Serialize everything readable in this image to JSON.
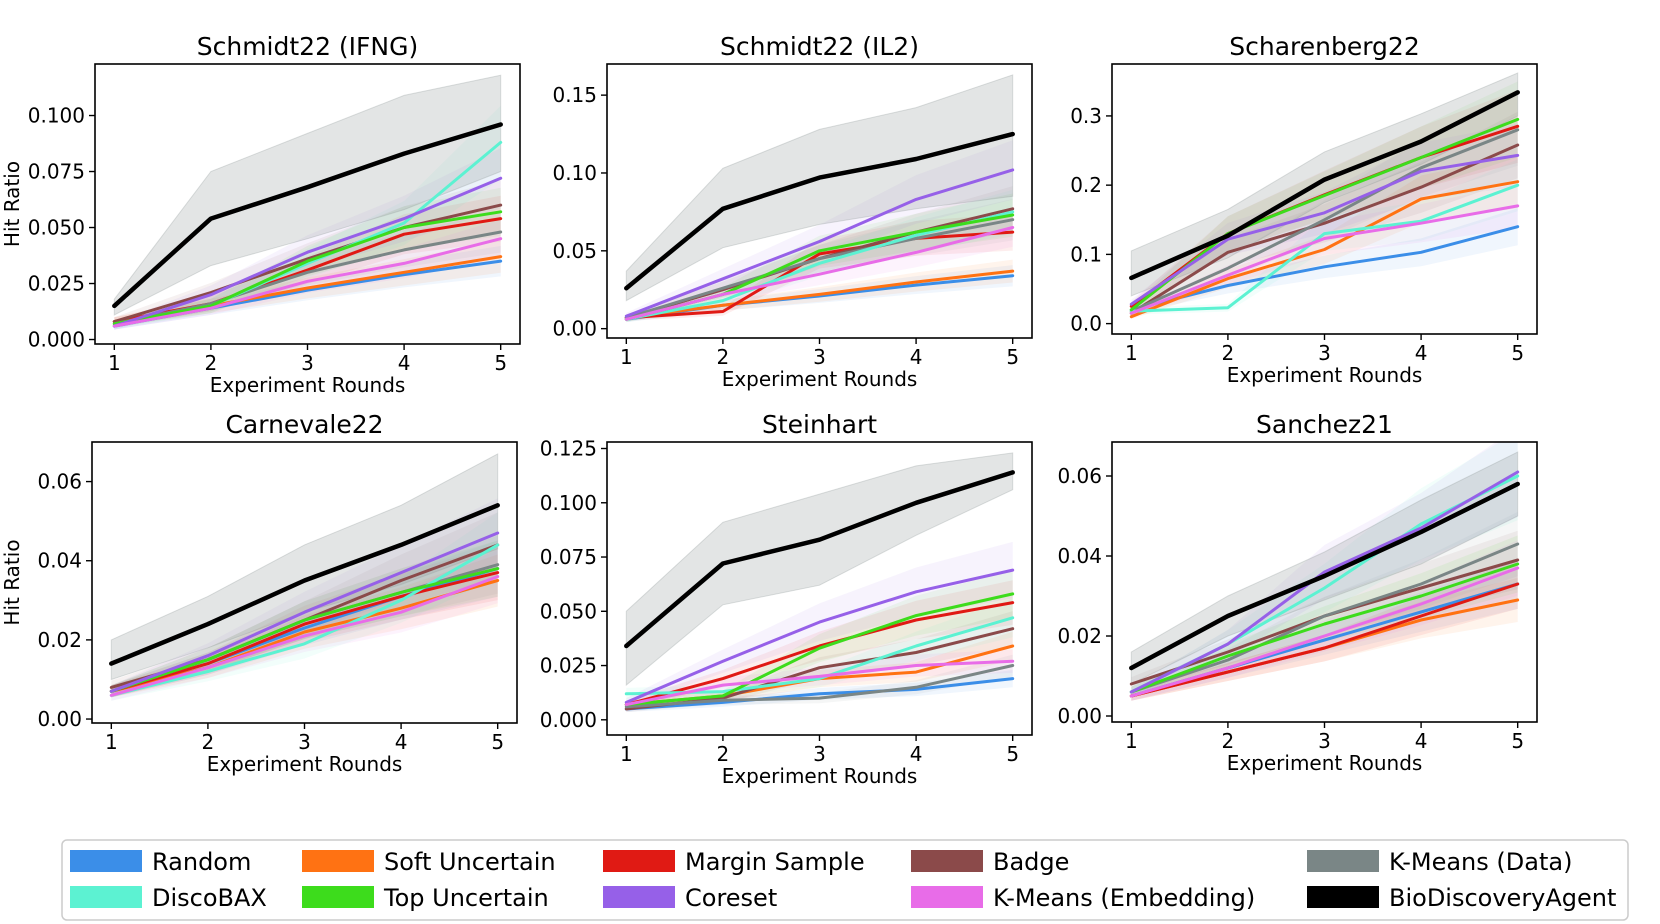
{
  "figure": {
    "legend_placement": "bottom",
    "legend": [
      {
        "key": "random",
        "label": "Random"
      },
      {
        "key": "soft",
        "label": "Soft Uncertain"
      },
      {
        "key": "margin",
        "label": "Margin Sample"
      },
      {
        "key": "badge",
        "label": "Badge"
      },
      {
        "key": "kmeans_data",
        "label": "K-Means (Data)"
      },
      {
        "key": "discobax",
        "label": "DiscoBAX"
      },
      {
        "key": "top",
        "label": "Top Uncertain"
      },
      {
        "key": "coreset",
        "label": "Coreset"
      },
      {
        "key": "kmeans_emb",
        "label": "K-Means (Embedding)"
      },
      {
        "key": "bda",
        "label": "BioDiscoveryAgent"
      }
    ],
    "colors": {
      "random": "#3b8ee8",
      "soft": "#ff7213",
      "margin": "#e01a14",
      "badge": "#8b4a4a",
      "kmeans_data": "#7a8686",
      "discobax": "#5cf2d2",
      "top": "#3ddc1c",
      "coreset": "#9660e8",
      "kmeans_emb": "#e86ce8",
      "bda": "#000000"
    }
  },
  "chart_data": [
    {
      "type": "line",
      "title": "Schmidt22 (IFNG)",
      "xlabel": "Experiment Rounds",
      "ylabel": "Hit Ratio",
      "x": [
        1,
        2,
        3,
        4,
        5
      ],
      "xlim": [
        0.8,
        5.2
      ],
      "ylim": [
        -0.002,
        0.123
      ],
      "yticks": [
        "0.000",
        "0.025",
        "0.050",
        "0.075",
        "0.100"
      ],
      "grid": false,
      "series": [
        {
          "name": "Random",
          "values": [
            0.006,
            0.014,
            0.022,
            0.029,
            0.035
          ]
        },
        {
          "name": "Soft Uncertain",
          "values": [
            0.008,
            0.015,
            0.023,
            0.03,
            0.037
          ]
        },
        {
          "name": "Margin Sample",
          "values": [
            0.008,
            0.016,
            0.031,
            0.047,
            0.054
          ]
        },
        {
          "name": "Badge",
          "values": [
            0.008,
            0.021,
            0.036,
            0.05,
            0.06
          ]
        },
        {
          "name": "K-Means (Data)",
          "values": [
            0.007,
            0.016,
            0.03,
            0.04,
            0.048
          ]
        },
        {
          "name": "DiscoBAX",
          "values": [
            0.006,
            0.015,
            0.034,
            0.052,
            0.088
          ]
        },
        {
          "name": "Top Uncertain",
          "values": [
            0.007,
            0.015,
            0.035,
            0.05,
            0.057
          ]
        },
        {
          "name": "Coreset",
          "values": [
            0.006,
            0.02,
            0.039,
            0.054,
            0.072
          ]
        },
        {
          "name": "K-Means (Embedding)",
          "values": [
            0.006,
            0.014,
            0.026,
            0.034,
            0.045
          ]
        },
        {
          "name": "BioDiscoveryAgent",
          "values": [
            0.015,
            0.054,
            0.068,
            0.083,
            0.096
          ],
          "band": [
            [
              0.011,
              0.018
            ],
            [
              0.033,
              0.075
            ],
            [
              0.045,
              0.092
            ],
            [
              0.058,
              0.109
            ],
            [
              0.075,
              0.118
            ]
          ]
        }
      ]
    },
    {
      "type": "line",
      "title": "Schmidt22 (IL2)",
      "xlabel": "Experiment Rounds",
      "ylabel": "",
      "x": [
        1,
        2,
        3,
        4,
        5
      ],
      "xlim": [
        0.8,
        5.2
      ],
      "ylim": [
        -0.006,
        0.17
      ],
      "yticks": [
        "0.00",
        "0.05",
        "0.10",
        "0.15"
      ],
      "grid": false,
      "series": [
        {
          "name": "Random",
          "values": [
            0.006,
            0.015,
            0.021,
            0.028,
            0.034
          ]
        },
        {
          "name": "Soft Uncertain",
          "values": [
            0.007,
            0.015,
            0.022,
            0.03,
            0.037
          ]
        },
        {
          "name": "Margin Sample",
          "values": [
            0.007,
            0.011,
            0.048,
            0.058,
            0.062
          ]
        },
        {
          "name": "Badge",
          "values": [
            0.007,
            0.025,
            0.045,
            0.062,
            0.077
          ]
        },
        {
          "name": "K-Means (Data)",
          "values": [
            0.007,
            0.026,
            0.045,
            0.058,
            0.07
          ]
        },
        {
          "name": "DiscoBAX",
          "values": [
            0.006,
            0.018,
            0.042,
            0.06,
            0.075
          ]
        },
        {
          "name": "Top Uncertain",
          "values": [
            0.006,
            0.022,
            0.05,
            0.062,
            0.073
          ]
        },
        {
          "name": "Coreset",
          "values": [
            0.008,
            0.032,
            0.056,
            0.083,
            0.102
          ]
        },
        {
          "name": "K-Means (Embedding)",
          "values": [
            0.006,
            0.022,
            0.035,
            0.049,
            0.065
          ]
        },
        {
          "name": "BioDiscoveryAgent",
          "values": [
            0.026,
            0.077,
            0.097,
            0.109,
            0.125
          ],
          "band": [
            [
              0.018,
              0.037
            ],
            [
              0.052,
              0.103
            ],
            [
              0.067,
              0.128
            ],
            [
              0.077,
              0.142
            ],
            [
              0.085,
              0.163
            ]
          ]
        }
      ]
    },
    {
      "type": "line",
      "title": "Scharenberg22",
      "xlabel": "Experiment Rounds",
      "ylabel": "",
      "x": [
        1,
        2,
        3,
        4,
        5
      ],
      "xlim": [
        0.8,
        5.2
      ],
      "ylim": [
        -0.015,
        0.375
      ],
      "yticks": [
        "0.0",
        "0.1",
        "0.2",
        "0.3"
      ],
      "grid": false,
      "series": [
        {
          "name": "Random",
          "values": [
            0.02,
            0.055,
            0.082,
            0.103,
            0.14
          ]
        },
        {
          "name": "Soft Uncertain",
          "values": [
            0.01,
            0.065,
            0.107,
            0.18,
            0.205
          ]
        },
        {
          "name": "Margin Sample",
          "values": [
            0.025,
            0.13,
            0.186,
            0.24,
            0.285
          ]
        },
        {
          "name": "Badge",
          "values": [
            0.015,
            0.103,
            0.145,
            0.197,
            0.258
          ]
        },
        {
          "name": "K-Means (Data)",
          "values": [
            0.018,
            0.08,
            0.15,
            0.225,
            0.28
          ]
        },
        {
          "name": "DiscoBAX",
          "values": [
            0.018,
            0.023,
            0.13,
            0.148,
            0.2
          ]
        },
        {
          "name": "Top Uncertain",
          "values": [
            0.02,
            0.13,
            0.185,
            0.24,
            0.295
          ]
        },
        {
          "name": "Coreset",
          "values": [
            0.028,
            0.122,
            0.16,
            0.22,
            0.243
          ]
        },
        {
          "name": "K-Means (Embedding)",
          "values": [
            0.015,
            0.07,
            0.123,
            0.145,
            0.17
          ]
        },
        {
          "name": "BioDiscoveryAgent",
          "values": [
            0.066,
            0.127,
            0.208,
            0.263,
            0.334
          ],
          "band": [
            [
              0.04,
              0.105
            ],
            [
              0.095,
              0.165
            ],
            [
              0.175,
              0.248
            ],
            [
              0.23,
              0.303
            ],
            [
              0.3,
              0.362
            ]
          ]
        }
      ]
    },
    {
      "type": "line",
      "title": "Carnevale22",
      "xlabel": "Experiment Rounds",
      "ylabel": "Hit Ratio",
      "x": [
        1,
        2,
        3,
        4,
        5
      ],
      "xlim": [
        0.8,
        5.2
      ],
      "ylim": [
        -0.001,
        0.07
      ],
      "yticks": [
        "0.00",
        "0.02",
        "0.04",
        "0.06"
      ],
      "grid": false,
      "series": [
        {
          "name": "Random",
          "values": [
            0.007,
            0.014,
            0.023,
            0.031,
            0.038
          ]
        },
        {
          "name": "Soft Uncertain",
          "values": [
            0.007,
            0.013,
            0.022,
            0.028,
            0.035
          ]
        },
        {
          "name": "Margin Sample",
          "values": [
            0.007,
            0.014,
            0.024,
            0.031,
            0.037
          ]
        },
        {
          "name": "Badge",
          "values": [
            0.008,
            0.015,
            0.025,
            0.035,
            0.044
          ]
        },
        {
          "name": "K-Means (Data)",
          "values": [
            0.007,
            0.015,
            0.025,
            0.032,
            0.039
          ]
        },
        {
          "name": "DiscoBAX",
          "values": [
            0.006,
            0.012,
            0.019,
            0.03,
            0.044
          ]
        },
        {
          "name": "Top Uncertain",
          "values": [
            0.007,
            0.015,
            0.025,
            0.032,
            0.038
          ]
        },
        {
          "name": "Coreset",
          "values": [
            0.007,
            0.016,
            0.027,
            0.037,
            0.047
          ]
        },
        {
          "name": "K-Means (Embedding)",
          "values": [
            0.006,
            0.013,
            0.021,
            0.027,
            0.036
          ]
        },
        {
          "name": "BioDiscoveryAgent",
          "values": [
            0.014,
            0.024,
            0.035,
            0.044,
            0.054
          ],
          "band": [
            [
              0.01,
              0.02
            ],
            [
              0.018,
              0.031
            ],
            [
              0.027,
              0.044
            ],
            [
              0.034,
              0.054
            ],
            [
              0.043,
              0.067
            ]
          ]
        }
      ]
    },
    {
      "type": "line",
      "title": "Steinhart",
      "xlabel": "Experiment Rounds",
      "ylabel": "",
      "x": [
        1,
        2,
        3,
        4,
        5
      ],
      "xlim": [
        0.8,
        5.2
      ],
      "ylim": [
        -0.007,
        0.128
      ],
      "yticks": [
        "0.000",
        "0.025",
        "0.050",
        "0.075",
        "0.100",
        "0.125"
      ],
      "grid": false,
      "series": [
        {
          "name": "Random",
          "values": [
            0.005,
            0.008,
            0.012,
            0.014,
            0.019
          ]
        },
        {
          "name": "Soft Uncertain",
          "values": [
            0.007,
            0.011,
            0.019,
            0.022,
            0.034
          ]
        },
        {
          "name": "Margin Sample",
          "values": [
            0.007,
            0.019,
            0.034,
            0.046,
            0.054
          ]
        },
        {
          "name": "Badge",
          "values": [
            0.005,
            0.01,
            0.024,
            0.031,
            0.042
          ]
        },
        {
          "name": "K-Means (Data)",
          "values": [
            0.006,
            0.009,
            0.01,
            0.015,
            0.025
          ]
        },
        {
          "name": "DiscoBAX",
          "values": [
            0.012,
            0.013,
            0.019,
            0.034,
            0.047
          ]
        },
        {
          "name": "Top Uncertain",
          "values": [
            0.007,
            0.011,
            0.033,
            0.048,
            0.058
          ]
        },
        {
          "name": "Coreset",
          "values": [
            0.008,
            0.027,
            0.045,
            0.059,
            0.069
          ]
        },
        {
          "name": "K-Means (Embedding)",
          "values": [
            0.007,
            0.016,
            0.02,
            0.025,
            0.027
          ]
        },
        {
          "name": "BioDiscoveryAgent",
          "values": [
            0.034,
            0.072,
            0.083,
            0.1,
            0.114
          ],
          "band": [
            [
              0.016,
              0.05
            ],
            [
              0.053,
              0.091
            ],
            [
              0.062,
              0.104
            ],
            [
              0.085,
              0.117
            ],
            [
              0.106,
              0.123
            ]
          ]
        }
      ]
    },
    {
      "type": "line",
      "title": "Sanchez21",
      "xlabel": "Experiment Rounds",
      "ylabel": "",
      "x": [
        1,
        2,
        3,
        4,
        5
      ],
      "xlim": [
        0.8,
        5.2
      ],
      "ylim": [
        -0.0015,
        0.0685
      ],
      "yticks": [
        "0.00",
        "0.02",
        "0.04",
        "0.06"
      ],
      "grid": false,
      "series": [
        {
          "name": "Random",
          "values": [
            0.005,
            0.012,
            0.019,
            0.026,
            0.033
          ]
        },
        {
          "name": "Soft Uncertain",
          "values": [
            0.005,
            0.011,
            0.017,
            0.024,
            0.029
          ]
        },
        {
          "name": "Margin Sample",
          "values": [
            0.005,
            0.011,
            0.017,
            0.025,
            0.033
          ]
        },
        {
          "name": "Badge",
          "values": [
            0.008,
            0.016,
            0.025,
            0.032,
            0.039
          ]
        },
        {
          "name": "K-Means (Data)",
          "values": [
            0.006,
            0.014,
            0.025,
            0.033,
            0.043
          ]
        },
        {
          "name": "DiscoBAX",
          "values": [
            0.006,
            0.018,
            0.032,
            0.048,
            0.06
          ]
        },
        {
          "name": "Top Uncertain",
          "values": [
            0.006,
            0.015,
            0.023,
            0.03,
            0.038
          ]
        },
        {
          "name": "Coreset",
          "values": [
            0.006,
            0.018,
            0.036,
            0.047,
            0.061
          ]
        },
        {
          "name": "K-Means (Embedding)",
          "values": [
            0.005,
            0.012,
            0.02,
            0.028,
            0.037
          ]
        },
        {
          "name": "BioDiscoveryAgent",
          "values": [
            0.012,
            0.025,
            0.035,
            0.046,
            0.058
          ],
          "band": [
            [
              0.008,
              0.016
            ],
            [
              0.02,
              0.03
            ],
            [
              0.029,
              0.041
            ],
            [
              0.038,
              0.054
            ],
            [
              0.05,
              0.066
            ]
          ]
        }
      ]
    }
  ]
}
